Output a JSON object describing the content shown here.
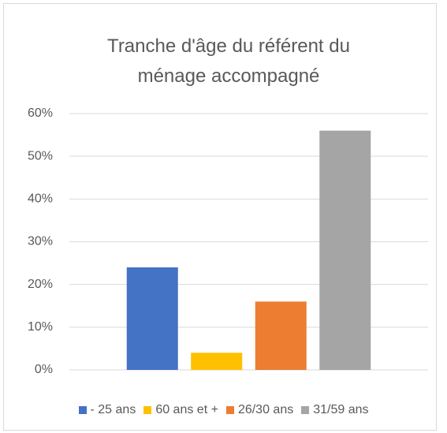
{
  "chart_data": {
    "type": "bar",
    "title": "Tranche d'âge du référent du ménage accompagné",
    "series": [
      {
        "name": "- 25 ans",
        "color": "#4472c4",
        "values": [
          24
        ]
      },
      {
        "name": "60 ans et +",
        "color": "#ffc000",
        "values": [
          4
        ]
      },
      {
        "name": "26/30 ans",
        "color": "#ed7d31",
        "values": [
          16
        ]
      },
      {
        "name": "31/59 ans",
        "color": "#a5a5a5",
        "values": [
          56
        ]
      }
    ],
    "ylim": [
      0,
      60
    ],
    "yticks": [
      {
        "value": 0,
        "label": "0%"
      },
      {
        "value": 10,
        "label": "10%"
      },
      {
        "value": 20,
        "label": "20%"
      },
      {
        "value": 30,
        "label": "30%"
      },
      {
        "value": 40,
        "label": "40%"
      },
      {
        "value": 50,
        "label": "50%"
      },
      {
        "value": 60,
        "label": "60%"
      }
    ],
    "grid": true,
    "legend": "bottom"
  }
}
